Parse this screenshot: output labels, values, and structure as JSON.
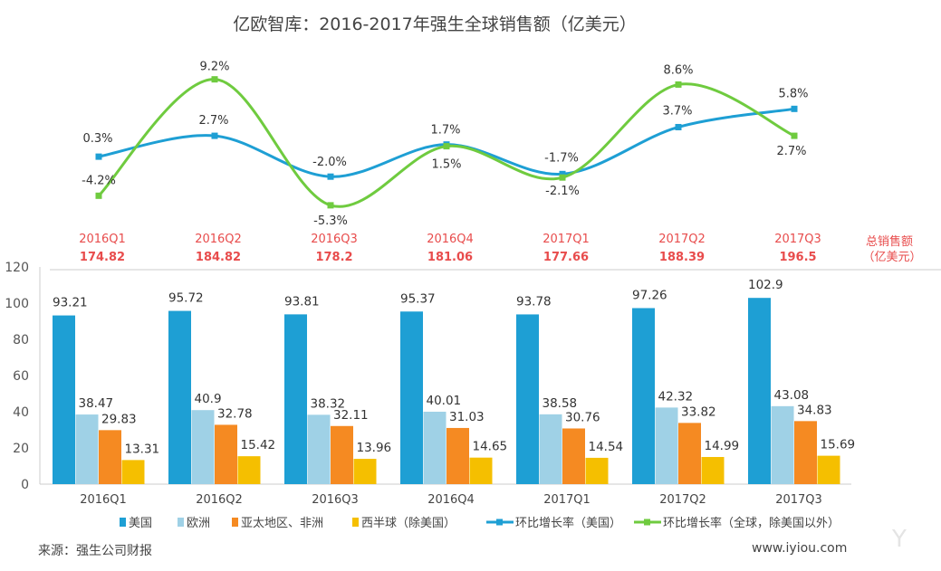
{
  "title": "亿欧智库：2016-2017年强生全球销售额（亿美元）",
  "colors": {
    "us": "#1e9fd4",
    "europe": "#9fd1e6",
    "apac": "#f58a22",
    "western": "#f5bf00",
    "line_us": "#1e9fd4",
    "line_global": "#6fcb3f",
    "red": "#e84c4c"
  },
  "chart_data": [
    {
      "type": "line",
      "categories": [
        "2016Q1",
        "2016Q2",
        "2016Q3",
        "2016Q4",
        "2017Q1",
        "2017Q2",
        "2017Q3"
      ],
      "series": [
        {
          "name": "环比增长率（美国）",
          "values": [
            0.3,
            2.7,
            -2.0,
            1.7,
            -1.7,
            3.7,
            5.8
          ],
          "labels": [
            "0.3%",
            "2.7%",
            "-2.0%",
            "1.7%",
            "-1.7%",
            "3.7%",
            "5.8%"
          ]
        },
        {
          "name": "环比增长率（全球，除美国以外）",
          "values": [
            -4.2,
            9.2,
            -5.3,
            1.5,
            -2.1,
            8.6,
            2.7
          ],
          "labels": [
            "-4.2%",
            "9.2%",
            "-5.3%",
            "1.5%",
            "-2.1%",
            "8.6%",
            "2.7%"
          ]
        }
      ],
      "unit": "%"
    },
    {
      "type": "table",
      "row_label": "总销售额",
      "row_unit": "（亿美元）",
      "categories": [
        "2016Q1",
        "2016Q2",
        "2016Q3",
        "2016Q4",
        "2017Q1",
        "2017Q2",
        "2017Q3"
      ],
      "values": [
        "174.82",
        "184.82",
        "178.2",
        "181.06",
        "177.66",
        "188.39",
        "196.5"
      ]
    },
    {
      "type": "bar",
      "categories": [
        "2016Q1",
        "2016Q2",
        "2016Q3",
        "2016Q4",
        "2017Q1",
        "2017Q2",
        "2017Q3"
      ],
      "series": [
        {
          "name": "美国",
          "values": [
            93.21,
            95.72,
            93.81,
            95.37,
            93.78,
            97.26,
            102.9
          ],
          "labels": [
            "93.21",
            "95.72",
            "93.81",
            "95.37",
            "93.78",
            "97.26",
            "102.9"
          ]
        },
        {
          "name": "欧洲",
          "values": [
            38.47,
            40.9,
            38.32,
            40.01,
            38.58,
            42.32,
            43.08
          ],
          "labels": [
            "38.47",
            "40.9",
            "38.32",
            "40.01",
            "38.58",
            "42.32",
            "43.08"
          ]
        },
        {
          "name": "亚太地区、非洲",
          "values": [
            29.83,
            32.78,
            32.11,
            31.03,
            30.76,
            33.82,
            34.83
          ],
          "labels": [
            "29.83",
            "32.78",
            "32.11",
            "31.03",
            "30.76",
            "33.82",
            "34.83"
          ]
        },
        {
          "name": "西半球（除美国）",
          "values": [
            13.31,
            15.42,
            13.96,
            14.65,
            14.54,
            14.99,
            15.69
          ],
          "labels": [
            "13.31",
            "15.42",
            "13.96",
            "14.65",
            "14.54",
            "14.99",
            "15.69"
          ]
        }
      ],
      "ylim": [
        0,
        120
      ],
      "yticks": [
        "0",
        "20",
        "40",
        "60",
        "80",
        "100",
        "120"
      ],
      "grid": false,
      "legend": "bottom"
    }
  ],
  "source": "来源：强生公司财报",
  "website": "www.iyiou.com",
  "watermark": "亿欧"
}
